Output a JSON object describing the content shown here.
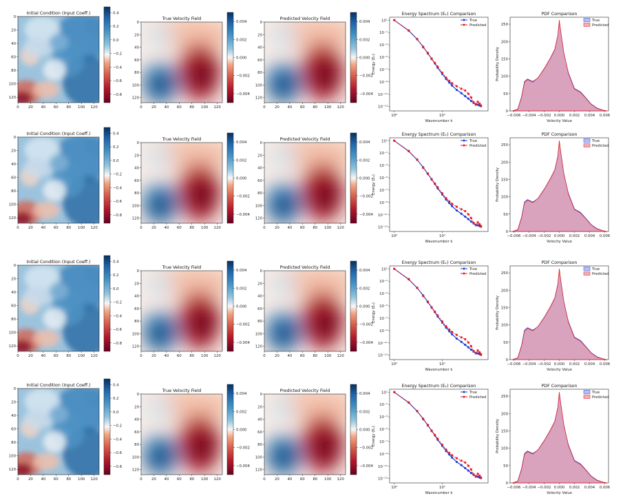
{
  "figure": {
    "rows": 4
  },
  "colors": {
    "true_line": "#1f3fd8",
    "pred_line": "#e81c1c",
    "true_fill": "#9aa3f0",
    "pred_fill": "#e88a9a",
    "overlap_fill": "#bd6fb3",
    "blue_deep": "#063a78",
    "red_deep": "#680a1f"
  },
  "chart_data": [
    {
      "type": "heatmap",
      "panel": "initial_condition",
      "rows": [
        0,
        1,
        2,
        3
      ],
      "title": "Initial Condition (Input Coeff.)",
      "xticks": [
        "0",
        "20",
        "40",
        "60",
        "80",
        "100",
        "120"
      ],
      "yticks": [
        "0",
        "20",
        "40",
        "60",
        "80",
        "100",
        "120"
      ],
      "colorbar_ticks": [
        "0.4",
        "0.2",
        "0.0",
        "−0.2",
        "−0.4",
        "−0.6",
        "−0.8"
      ],
      "vmin": -0.9,
      "vmax": 0.5,
      "colormap": "RdBu"
    },
    {
      "type": "heatmap",
      "panel": "true_velocity",
      "rows": [
        0,
        1,
        2,
        3
      ],
      "title": "True Velocity Field",
      "xticks": [
        "0",
        "20",
        "40",
        "60",
        "80",
        "100",
        "120"
      ],
      "yticks": [
        "0",
        "20",
        "40",
        "60",
        "80",
        "100",
        "120"
      ],
      "colorbar_ticks": [
        "0.004",
        "0.002",
        "0.000",
        "−0.002",
        "−0.004"
      ],
      "vmin": -0.005,
      "vmax": 0.005,
      "colormap": "RdBu"
    },
    {
      "type": "heatmap",
      "panel": "predicted_velocity",
      "rows": [
        0,
        1,
        2,
        3
      ],
      "title": "Predicted Velocity Field",
      "xticks": [
        "0",
        "20",
        "40",
        "60",
        "80",
        "100",
        "120"
      ],
      "yticks": [
        "0",
        "20",
        "40",
        "60",
        "80",
        "100",
        "120"
      ],
      "colorbar_ticks": [
        "0.004",
        "0.002",
        "0.000",
        "−0.002",
        "−0.004"
      ],
      "vmin": -0.005,
      "vmax": 0.005,
      "colormap": "RdBu"
    },
    {
      "type": "line",
      "panel": "energy_spectrum",
      "rows": [
        0,
        1,
        2,
        3
      ],
      "title": "Energy Spectrum (Eₖ) Comparison",
      "xlabel": "Wavenumber k",
      "ylabel": "Energy (Eₖ)",
      "xscale": "log",
      "yscale": "log",
      "xlim": [
        0.8,
        90
      ],
      "ylim": [
        2e-14,
        30
      ],
      "xticks": [
        "10⁰",
        "10¹"
      ],
      "yticks": [
        "10¹",
        "10⁻¹",
        "10⁻³",
        "10⁻⁵",
        "10⁻⁷",
        "10⁻⁹",
        "10⁻¹¹",
        "10⁻¹³"
      ],
      "legend": [
        "True",
        "Predicted"
      ],
      "legend_loc": "upper right",
      "series": [
        {
          "name": "True",
          "x": [
            1,
            2,
            3,
            4,
            5,
            6,
            7,
            8,
            10,
            12,
            14,
            16,
            20,
            25,
            30,
            35,
            40,
            45,
            50,
            55,
            60,
            64
          ],
          "y": [
            10,
            0.2,
            0.008,
            0.0005,
            4e-05,
            6e-06,
            1e-06,
            2e-07,
            2e-08,
            3e-09,
            8e-10,
            2.5e-10,
            5e-11,
            1.5e-11,
            5e-12,
            2e-12,
            8e-13,
            4e-13,
            2.5e-13,
            2e-13,
            1.5e-13,
            1.2e-13
          ]
        },
        {
          "name": "Predicted",
          "x": [
            1,
            2,
            3,
            4,
            5,
            6,
            7,
            8,
            10,
            12,
            14,
            16,
            20,
            25,
            30,
            35,
            40,
            45,
            50,
            55,
            60,
            64
          ],
          "y": [
            10,
            0.22,
            0.009,
            0.0004,
            5e-05,
            5e-06,
            1.2e-06,
            3e-07,
            3e-08,
            5e-09,
            1.5e-09,
            6e-10,
            2e-10,
            8e-11,
            4e-11,
            1.2e-11,
            3e-12,
            5e-13,
            2e-13,
            6e-13,
            3e-13,
            1.5e-13
          ]
        }
      ]
    },
    {
      "type": "area",
      "panel": "pdf_comparison",
      "rows": [
        0,
        1,
        2,
        3
      ],
      "title": "PDF Comparison",
      "xlabel": "Velocity Value",
      "ylabel": "Probability Density",
      "xlim": [
        -0.0065,
        0.0065
      ],
      "ylim": [
        0,
        270
      ],
      "xticks": [
        "−0.006",
        "−0.004",
        "−0.002",
        "0.000",
        "0.002",
        "0.004",
        "0.006"
      ],
      "yticks": [
        "0",
        "50",
        "100",
        "150",
        "200",
        "250"
      ],
      "legend": [
        "True",
        "Predicted"
      ],
      "legend_loc": "upper right",
      "series": [
        {
          "name": "True",
          "x": [
            -0.0062,
            -0.0055,
            -0.005,
            -0.0046,
            -0.0042,
            -0.0035,
            -0.0028,
            -0.002,
            -0.0012,
            -0.0006,
            -0.0002,
            0.0,
            0.0002,
            0.0006,
            0.0012,
            0.002,
            0.0028,
            0.0035,
            0.0042,
            0.005,
            0.0058,
            0.0063
          ],
          "y": [
            0,
            5,
            40,
            85,
            92,
            85,
            95,
            120,
            150,
            175,
            215,
            255,
            225,
            165,
            110,
            65,
            55,
            38,
            20,
            8,
            2,
            0
          ]
        },
        {
          "name": "Predicted",
          "x": [
            -0.0062,
            -0.0055,
            -0.005,
            -0.0046,
            -0.0042,
            -0.0035,
            -0.0028,
            -0.002,
            -0.0012,
            -0.0006,
            -0.0002,
            0.0,
            0.0002,
            0.0006,
            0.0012,
            0.002,
            0.0028,
            0.0035,
            0.0042,
            0.005,
            0.0058,
            0.0063
          ],
          "y": [
            0,
            4,
            38,
            82,
            90,
            83,
            96,
            122,
            152,
            178,
            218,
            262,
            228,
            168,
            108,
            63,
            53,
            37,
            19,
            7,
            2,
            0
          ]
        }
      ]
    }
  ]
}
